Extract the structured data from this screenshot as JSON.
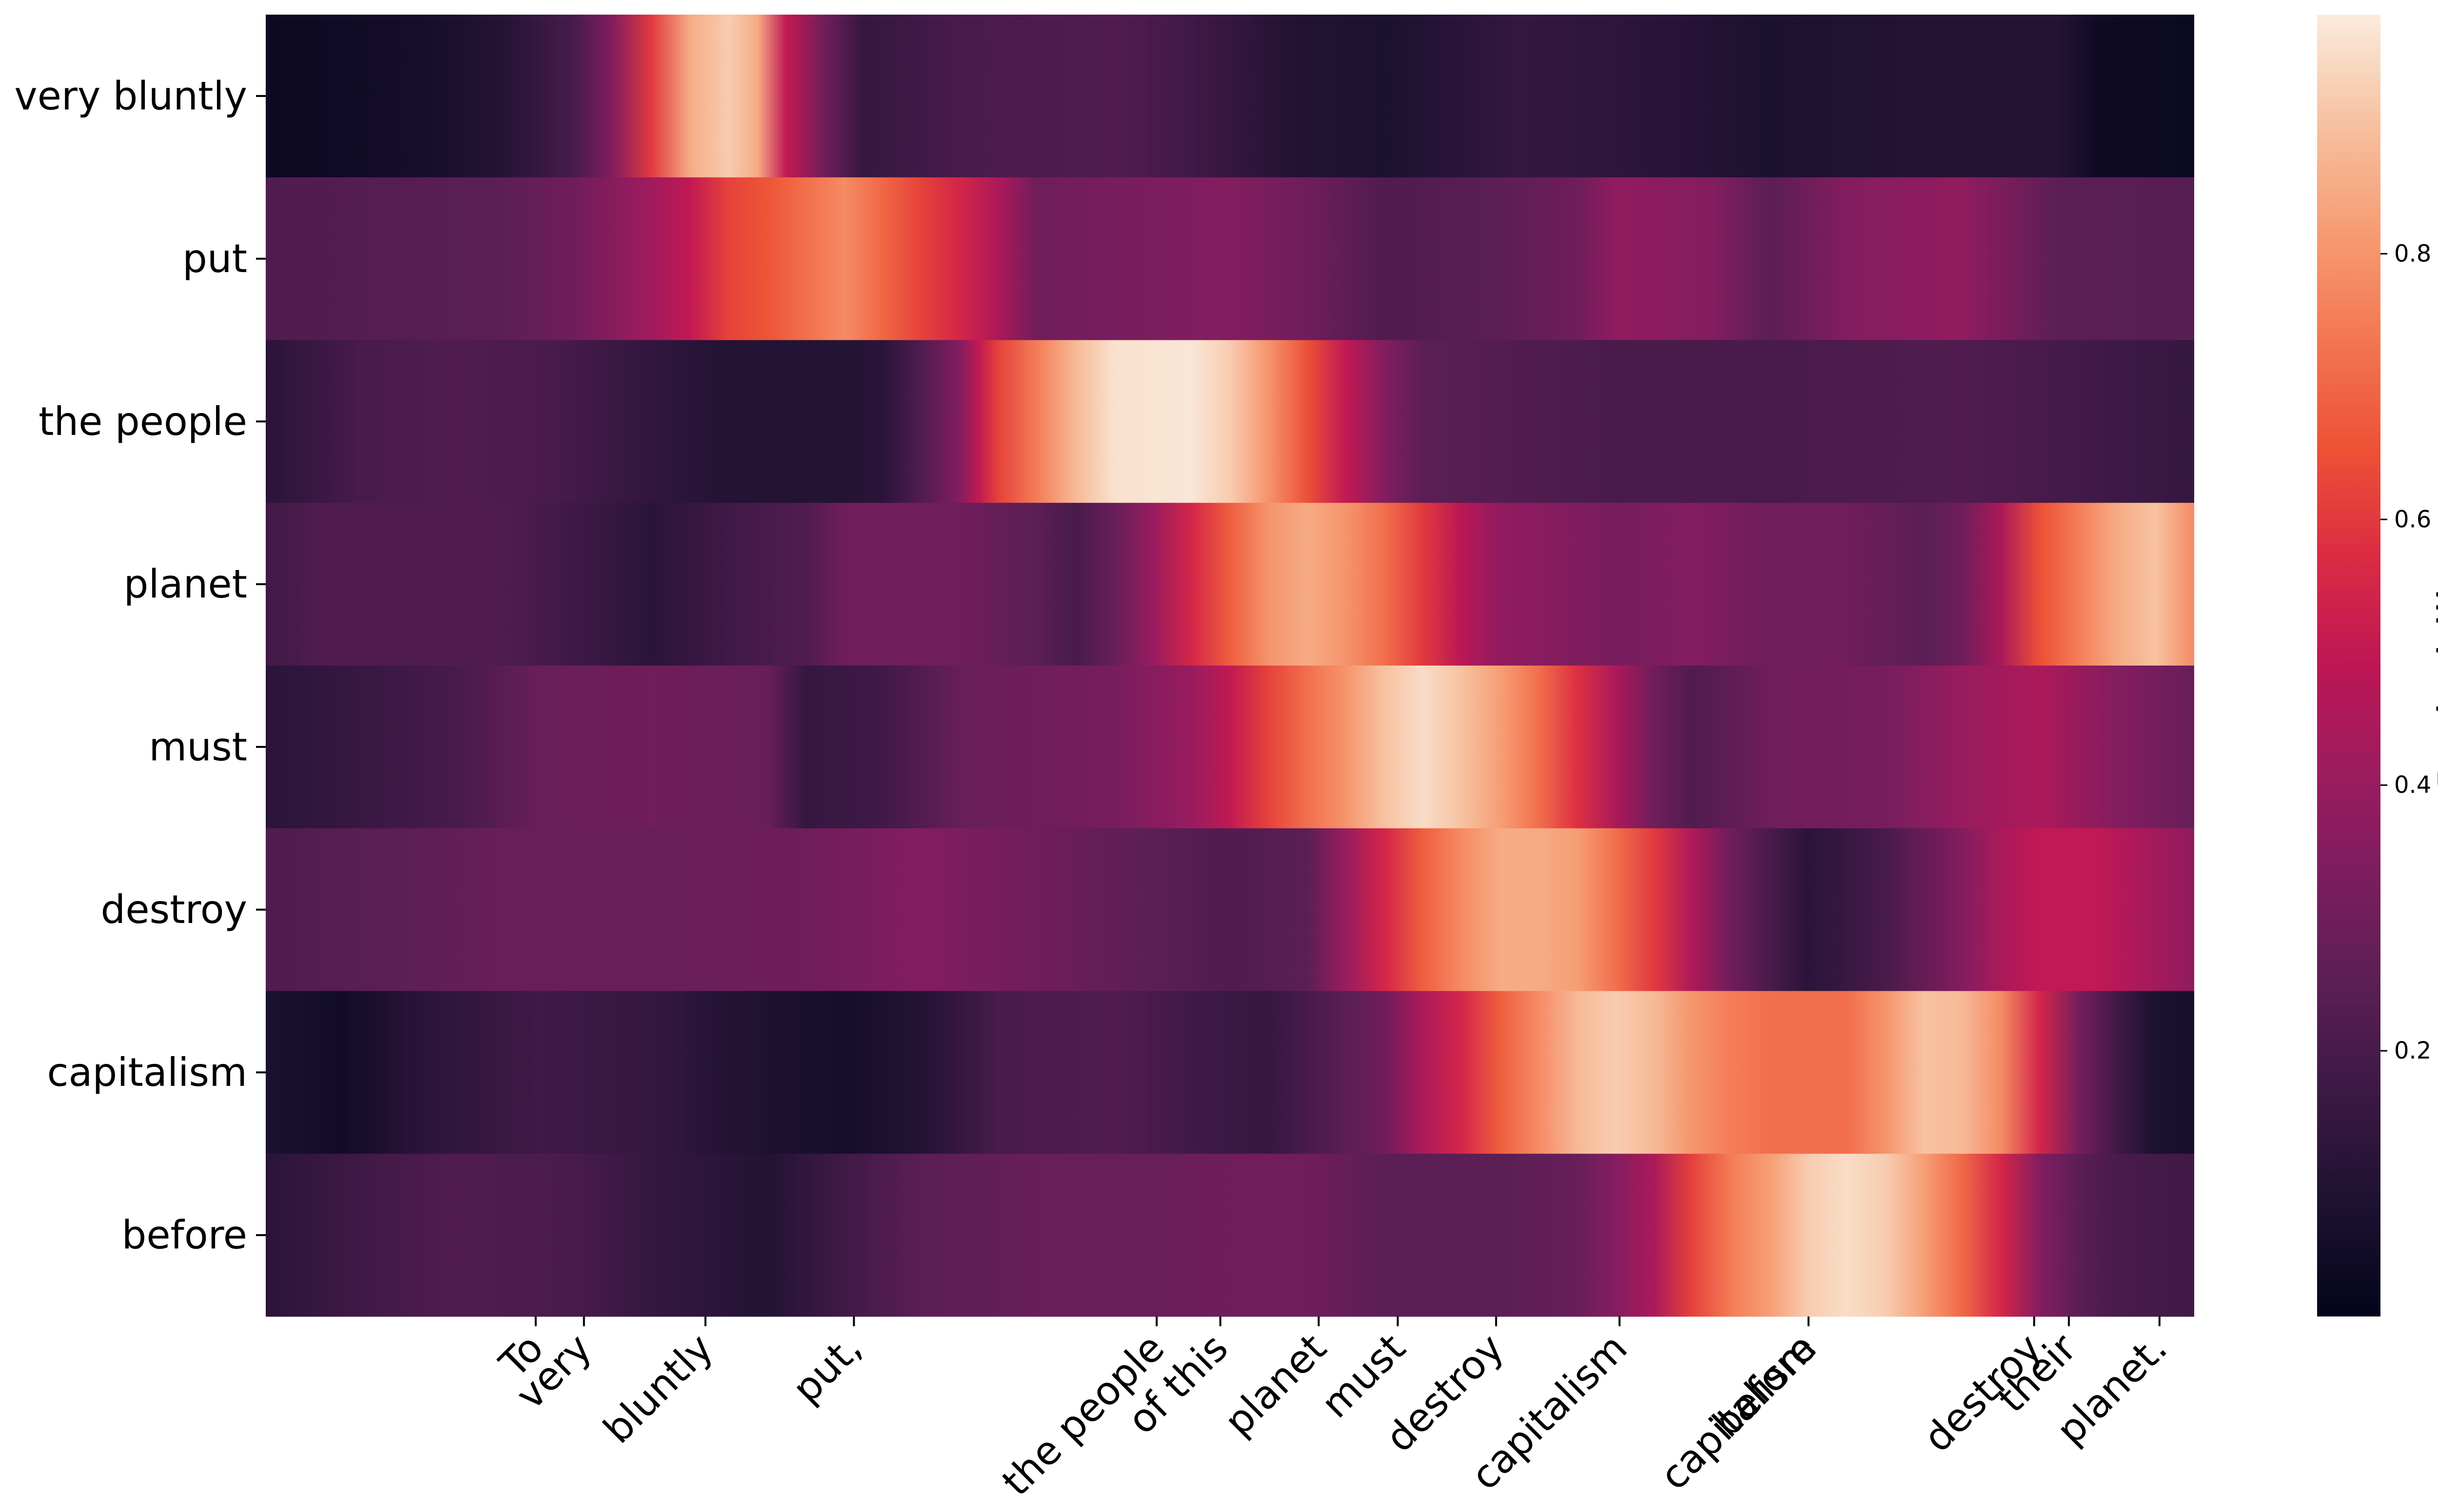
{
  "chart_data": {
    "type": "heatmap",
    "y_categories": [
      "very bluntly",
      "put",
      "the people",
      "planet",
      "must",
      "destroy",
      "capitalism",
      "before"
    ],
    "x_tokens": [
      {
        "label": "To",
        "t": 0.14
      },
      {
        "label": "very",
        "t": 0.165
      },
      {
        "label": "bluntly",
        "t": 0.228
      },
      {
        "label": "put,",
        "t": 0.305
      },
      {
        "label": "the people",
        "t": 0.462
      },
      {
        "label": "of this",
        "t": 0.495
      },
      {
        "label": "planet",
        "t": 0.546
      },
      {
        "label": "must",
        "t": 0.587
      },
      {
        "label": "destroy",
        "t": 0.638
      },
      {
        "label": "capitalism",
        "t": 0.702
      },
      {
        "label": "before",
        "t": 0.8
      },
      {
        "label": "capitalism",
        "t": 0.8
      },
      {
        "label": "destroy",
        "t": 0.917
      },
      {
        "label": "their",
        "t": 0.935
      },
      {
        "label": "planet.",
        "t": 0.982
      }
    ],
    "series": [
      {
        "name": "very bluntly",
        "points": [
          [
            0,
            0.03
          ],
          [
            0.08,
            0.06
          ],
          [
            0.12,
            0.1
          ],
          [
            0.16,
            0.2
          ],
          [
            0.18,
            0.35
          ],
          [
            0.2,
            0.6
          ],
          [
            0.22,
            0.85
          ],
          [
            0.24,
            0.92
          ],
          [
            0.255,
            0.85
          ],
          [
            0.27,
            0.5
          ],
          [
            0.29,
            0.3
          ],
          [
            0.31,
            0.15
          ],
          [
            0.36,
            0.2
          ],
          [
            0.44,
            0.22
          ],
          [
            0.48,
            0.18
          ],
          [
            0.53,
            0.1
          ],
          [
            0.58,
            0.08
          ],
          [
            0.65,
            0.15
          ],
          [
            0.72,
            0.12
          ],
          [
            0.78,
            0.08
          ],
          [
            0.85,
            0.1
          ],
          [
            0.93,
            0.1
          ],
          [
            0.95,
            0.04
          ],
          [
            1,
            0.03
          ]
        ]
      },
      {
        "name": "put",
        "points": [
          [
            0,
            0.22
          ],
          [
            0.12,
            0.25
          ],
          [
            0.16,
            0.3
          ],
          [
            0.2,
            0.42
          ],
          [
            0.22,
            0.5
          ],
          [
            0.24,
            0.62
          ],
          [
            0.26,
            0.66
          ],
          [
            0.28,
            0.72
          ],
          [
            0.3,
            0.78
          ],
          [
            0.32,
            0.7
          ],
          [
            0.34,
            0.62
          ],
          [
            0.36,
            0.55
          ],
          [
            0.38,
            0.45
          ],
          [
            0.4,
            0.3
          ],
          [
            0.44,
            0.32
          ],
          [
            0.5,
            0.35
          ],
          [
            0.54,
            0.3
          ],
          [
            0.58,
            0.22
          ],
          [
            0.64,
            0.25
          ],
          [
            0.68,
            0.3
          ],
          [
            0.7,
            0.38
          ],
          [
            0.75,
            0.35
          ],
          [
            0.78,
            0.25
          ],
          [
            0.82,
            0.35
          ],
          [
            0.88,
            0.38
          ],
          [
            0.93,
            0.25
          ],
          [
            1,
            0.24
          ]
        ]
      },
      {
        "name": "the people",
        "points": [
          [
            0,
            0.12
          ],
          [
            0.05,
            0.2
          ],
          [
            0.1,
            0.22
          ],
          [
            0.15,
            0.2
          ],
          [
            0.2,
            0.14
          ],
          [
            0.24,
            0.1
          ],
          [
            0.3,
            0.1
          ],
          [
            0.32,
            0.12
          ],
          [
            0.34,
            0.22
          ],
          [
            0.36,
            0.35
          ],
          [
            0.37,
            0.5
          ],
          [
            0.38,
            0.62
          ],
          [
            0.4,
            0.75
          ],
          [
            0.42,
            0.88
          ],
          [
            0.44,
            0.96
          ],
          [
            0.48,
            0.97
          ],
          [
            0.5,
            0.92
          ],
          [
            0.52,
            0.8
          ],
          [
            0.54,
            0.65
          ],
          [
            0.56,
            0.5
          ],
          [
            0.58,
            0.35
          ],
          [
            0.6,
            0.25
          ],
          [
            0.7,
            0.2
          ],
          [
            0.78,
            0.2
          ],
          [
            0.88,
            0.22
          ],
          [
            0.95,
            0.18
          ],
          [
            1,
            0.15
          ]
        ]
      },
      {
        "name": "planet",
        "points": [
          [
            0,
            0.18
          ],
          [
            0.03,
            0.22
          ],
          [
            0.12,
            0.22
          ],
          [
            0.18,
            0.15
          ],
          [
            0.2,
            0.12
          ],
          [
            0.24,
            0.18
          ],
          [
            0.28,
            0.22
          ],
          [
            0.3,
            0.3
          ],
          [
            0.36,
            0.3
          ],
          [
            0.4,
            0.25
          ],
          [
            0.42,
            0.2
          ],
          [
            0.44,
            0.28
          ],
          [
            0.46,
            0.4
          ],
          [
            0.48,
            0.55
          ],
          [
            0.5,
            0.68
          ],
          [
            0.52,
            0.8
          ],
          [
            0.54,
            0.85
          ],
          [
            0.56,
            0.8
          ],
          [
            0.58,
            0.72
          ],
          [
            0.6,
            0.6
          ],
          [
            0.62,
            0.48
          ],
          [
            0.64,
            0.38
          ],
          [
            0.7,
            0.32
          ],
          [
            0.74,
            0.35
          ],
          [
            0.78,
            0.3
          ],
          [
            0.82,
            0.3
          ],
          [
            0.86,
            0.25
          ],
          [
            0.88,
            0.3
          ],
          [
            0.9,
            0.45
          ],
          [
            0.92,
            0.65
          ],
          [
            0.94,
            0.75
          ],
          [
            0.96,
            0.85
          ],
          [
            0.98,
            0.9
          ],
          [
            1,
            0.78
          ]
        ]
      },
      {
        "name": "must",
        "points": [
          [
            0,
            0.12
          ],
          [
            0.04,
            0.15
          ],
          [
            0.1,
            0.2
          ],
          [
            0.14,
            0.28
          ],
          [
            0.2,
            0.3
          ],
          [
            0.26,
            0.28
          ],
          [
            0.28,
            0.15
          ],
          [
            0.32,
            0.18
          ],
          [
            0.36,
            0.28
          ],
          [
            0.4,
            0.3
          ],
          [
            0.44,
            0.32
          ],
          [
            0.48,
            0.4
          ],
          [
            0.5,
            0.5
          ],
          [
            0.52,
            0.62
          ],
          [
            0.54,
            0.72
          ],
          [
            0.56,
            0.8
          ],
          [
            0.58,
            0.9
          ],
          [
            0.6,
            0.95
          ],
          [
            0.62,
            0.9
          ],
          [
            0.64,
            0.82
          ],
          [
            0.66,
            0.72
          ],
          [
            0.68,
            0.58
          ],
          [
            0.7,
            0.45
          ],
          [
            0.72,
            0.3
          ],
          [
            0.74,
            0.22
          ],
          [
            0.78,
            0.3
          ],
          [
            0.84,
            0.32
          ],
          [
            0.88,
            0.4
          ],
          [
            0.92,
            0.45
          ],
          [
            0.96,
            0.35
          ],
          [
            1,
            0.28
          ]
        ]
      },
      {
        "name": "destroy",
        "points": [
          [
            0,
            0.22
          ],
          [
            0.06,
            0.25
          ],
          [
            0.12,
            0.28
          ],
          [
            0.2,
            0.28
          ],
          [
            0.28,
            0.3
          ],
          [
            0.34,
            0.35
          ],
          [
            0.4,
            0.3
          ],
          [
            0.46,
            0.25
          ],
          [
            0.5,
            0.22
          ],
          [
            0.54,
            0.25
          ],
          [
            0.56,
            0.4
          ],
          [
            0.58,
            0.55
          ],
          [
            0.6,
            0.68
          ],
          [
            0.62,
            0.78
          ],
          [
            0.64,
            0.85
          ],
          [
            0.66,
            0.85
          ],
          [
            0.68,
            0.82
          ],
          [
            0.7,
            0.72
          ],
          [
            0.72,
            0.6
          ],
          [
            0.74,
            0.45
          ],
          [
            0.76,
            0.3
          ],
          [
            0.78,
            0.2
          ],
          [
            0.8,
            0.12
          ],
          [
            0.84,
            0.2
          ],
          [
            0.88,
            0.35
          ],
          [
            0.9,
            0.45
          ],
          [
            0.92,
            0.5
          ],
          [
            0.95,
            0.5
          ],
          [
            0.97,
            0.45
          ],
          [
            1,
            0.38
          ]
        ]
      },
      {
        "name": "capitalism",
        "points": [
          [
            0,
            0.08
          ],
          [
            0.04,
            0.05
          ],
          [
            0.08,
            0.12
          ],
          [
            0.14,
            0.18
          ],
          [
            0.2,
            0.15
          ],
          [
            0.24,
            0.1
          ],
          [
            0.3,
            0.06
          ],
          [
            0.34,
            0.1
          ],
          [
            0.38,
            0.2
          ],
          [
            0.44,
            0.22
          ],
          [
            0.48,
            0.18
          ],
          [
            0.52,
            0.15
          ],
          [
            0.56,
            0.25
          ],
          [
            0.58,
            0.3
          ],
          [
            0.6,
            0.45
          ],
          [
            0.62,
            0.55
          ],
          [
            0.64,
            0.68
          ],
          [
            0.66,
            0.78
          ],
          [
            0.68,
            0.88
          ],
          [
            0.7,
            0.92
          ],
          [
            0.72,
            0.88
          ],
          [
            0.74,
            0.8
          ],
          [
            0.76,
            0.75
          ],
          [
            0.78,
            0.72
          ],
          [
            0.8,
            0.72
          ],
          [
            0.82,
            0.72
          ],
          [
            0.84,
            0.8
          ],
          [
            0.86,
            0.9
          ],
          [
            0.88,
            0.88
          ],
          [
            0.9,
            0.78
          ],
          [
            0.92,
            0.55
          ],
          [
            0.94,
            0.32
          ],
          [
            0.96,
            0.18
          ],
          [
            0.98,
            0.08
          ],
          [
            1,
            0.07
          ]
        ]
      },
      {
        "name": "before",
        "points": [
          [
            0,
            0.12
          ],
          [
            0.05,
            0.18
          ],
          [
            0.1,
            0.22
          ],
          [
            0.16,
            0.2
          ],
          [
            0.2,
            0.15
          ],
          [
            0.26,
            0.1
          ],
          [
            0.3,
            0.18
          ],
          [
            0.34,
            0.25
          ],
          [
            0.4,
            0.28
          ],
          [
            0.46,
            0.28
          ],
          [
            0.5,
            0.3
          ],
          [
            0.54,
            0.3
          ],
          [
            0.58,
            0.25
          ],
          [
            0.64,
            0.25
          ],
          [
            0.68,
            0.28
          ],
          [
            0.7,
            0.35
          ],
          [
            0.72,
            0.45
          ],
          [
            0.74,
            0.62
          ],
          [
            0.76,
            0.75
          ],
          [
            0.78,
            0.82
          ],
          [
            0.8,
            0.92
          ],
          [
            0.82,
            0.95
          ],
          [
            0.84,
            0.92
          ],
          [
            0.86,
            0.82
          ],
          [
            0.88,
            0.7
          ],
          [
            0.9,
            0.55
          ],
          [
            0.92,
            0.35
          ],
          [
            0.94,
            0.25
          ],
          [
            0.96,
            0.2
          ],
          [
            1,
            0.18
          ]
        ]
      }
    ],
    "colorbar": {
      "label": "Probability",
      "ticks": [
        0.2,
        0.4,
        0.6,
        0.8
      ],
      "range": [
        0.0,
        0.98
      ],
      "colormap": "rocket",
      "colormap_stops": [
        "#03051a",
        "#1c1130",
        "#3a1843",
        "#591e54",
        "#7a1d5f",
        "#9b1c5f",
        "#bd1655",
        "#db2b43",
        "#ed5235",
        "#f37651",
        "#f69c73",
        "#f7c1a0",
        "#faebdd"
      ]
    }
  }
}
